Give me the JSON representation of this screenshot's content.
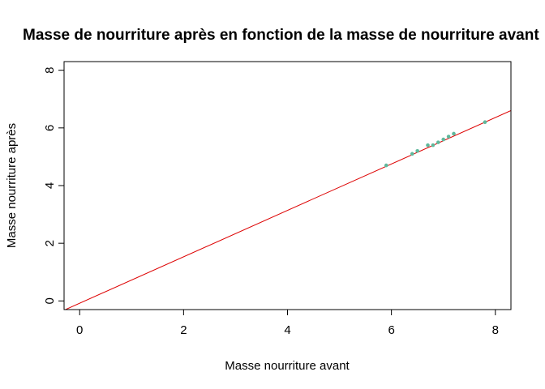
{
  "chart_data": {
    "type": "scatter",
    "title": "Masse de nourriture après en fonction de la masse de nourriture avant",
    "xlabel": "Masse nourriture avant",
    "ylabel": "Masse nourriture après",
    "xlim": [
      -0.3,
      8.3
    ],
    "ylim": [
      -0.3,
      8.3
    ],
    "xticks": [
      0,
      2,
      4,
      6,
      8
    ],
    "yticks": [
      0,
      2,
      4,
      6,
      8
    ],
    "grid": false,
    "points": {
      "x": [
        5.9,
        6.4,
        6.5,
        6.7,
        6.8,
        6.9,
        7.0,
        7.1,
        7.2,
        7.8
      ],
      "y": [
        4.7,
        5.1,
        5.2,
        5.4,
        5.4,
        5.5,
        5.6,
        5.7,
        5.8,
        6.2
      ],
      "color": "#5FB89C"
    },
    "regression_line": {
      "intercept": -0.08,
      "slope": 0.805,
      "color": "#DD0000"
    }
  }
}
